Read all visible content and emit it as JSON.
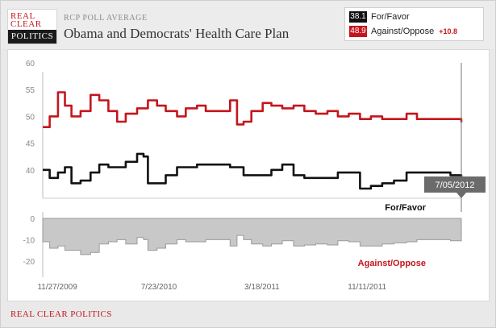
{
  "logo": {
    "line1": "REAL",
    "line2": "CLEAR",
    "line3": "POLITICS"
  },
  "header": {
    "kicker": "RCP POLL AVERAGE",
    "title": "Obama and Democrats' Health Care Plan"
  },
  "legend": {
    "favor": {
      "value": "38.1",
      "label": "For/Favor"
    },
    "against": {
      "value": "48.9",
      "label": "Against/Oppose",
      "spread": "+10.8"
    }
  },
  "colors": {
    "favor": "#111111",
    "against": "#c4161c",
    "spread_fill": "#c8c8c8",
    "brand_red": "#c4161c"
  },
  "footer": {
    "source": "REAL CLEAR POLITICS"
  },
  "chart_data": [
    {
      "type": "line",
      "title": "Obama and Democrats' Health Care Plan",
      "x_domain": [
        "2009-11-15",
        "2012-07-05"
      ],
      "ylim": [
        35,
        60
      ],
      "yticks": [
        40,
        45,
        50,
        55,
        60
      ],
      "grid": false,
      "tooltip": "7/05/2012",
      "series": [
        {
          "name": "Against/Oppose",
          "color": "#c4161c",
          "points": [
            [
              "2009-11-15",
              48
            ],
            [
              "2009-12-01",
              50
            ],
            [
              "2009-12-20",
              54.5
            ],
            [
              "2010-01-05",
              52
            ],
            [
              "2010-01-20",
              50
            ],
            [
              "2010-02-10",
              51
            ],
            [
              "2010-03-05",
              54
            ],
            [
              "2010-03-25",
              53
            ],
            [
              "2010-04-15",
              51
            ],
            [
              "2010-05-05",
              49
            ],
            [
              "2010-05-25",
              50.5
            ],
            [
              "2010-06-20",
              51.5
            ],
            [
              "2010-07-15",
              53
            ],
            [
              "2010-08-05",
              52
            ],
            [
              "2010-08-25",
              51
            ],
            [
              "2010-09-20",
              50
            ],
            [
              "2010-10-10",
              51.5
            ],
            [
              "2010-11-05",
              52
            ],
            [
              "2010-11-25",
              51
            ],
            [
              "2010-12-20",
              51
            ],
            [
              "2011-01-20",
              53
            ],
            [
              "2011-02-05",
              48.5
            ],
            [
              "2011-02-20",
              49
            ],
            [
              "2011-03-10",
              51
            ],
            [
              "2011-04-05",
              52.5
            ],
            [
              "2011-04-25",
              52
            ],
            [
              "2011-05-20",
              51.5
            ],
            [
              "2011-06-15",
              52
            ],
            [
              "2011-07-10",
              51
            ],
            [
              "2011-08-05",
              50.5
            ],
            [
              "2011-09-01",
              51
            ],
            [
              "2011-09-25",
              50
            ],
            [
              "2011-10-20",
              50.5
            ],
            [
              "2011-11-15",
              49.5
            ],
            [
              "2011-12-10",
              50
            ],
            [
              "2012-01-05",
              49.5
            ],
            [
              "2012-02-01",
              49.5
            ],
            [
              "2012-03-01",
              50.5
            ],
            [
              "2012-03-25",
              49.5
            ],
            [
              "2012-04-20",
              49.5
            ],
            [
              "2012-05-15",
              49.5
            ],
            [
              "2012-06-10",
              49.5
            ],
            [
              "2012-07-05",
              48.9
            ]
          ]
        },
        {
          "name": "For/Favor",
          "color": "#111111",
          "points": [
            [
              "2009-11-15",
              40
            ],
            [
              "2009-12-01",
              38.5
            ],
            [
              "2009-12-20",
              39.5
            ],
            [
              "2010-01-05",
              40.5
            ],
            [
              "2010-01-20",
              37.5
            ],
            [
              "2010-02-10",
              38
            ],
            [
              "2010-03-05",
              39.5
            ],
            [
              "2010-03-25",
              41
            ],
            [
              "2010-04-15",
              40.5
            ],
            [
              "2010-05-05",
              40.5
            ],
            [
              "2010-05-25",
              41.5
            ],
            [
              "2010-06-20",
              43
            ],
            [
              "2010-07-05",
              42.5
            ],
            [
              "2010-07-15",
              37.5
            ],
            [
              "2010-08-05",
              37.5
            ],
            [
              "2010-08-25",
              39
            ],
            [
              "2010-09-20",
              40.5
            ],
            [
              "2010-10-10",
              40.5
            ],
            [
              "2010-11-05",
              41
            ],
            [
              "2010-11-25",
              41
            ],
            [
              "2010-12-20",
              41
            ],
            [
              "2011-01-20",
              40.5
            ],
            [
              "2011-02-05",
              40.5
            ],
            [
              "2011-02-20",
              39
            ],
            [
              "2011-03-10",
              39
            ],
            [
              "2011-04-05",
              39
            ],
            [
              "2011-04-25",
              40
            ],
            [
              "2011-05-20",
              41
            ],
            [
              "2011-06-15",
              39
            ],
            [
              "2011-07-10",
              38.5
            ],
            [
              "2011-08-05",
              38.5
            ],
            [
              "2011-09-01",
              38.5
            ],
            [
              "2011-09-25",
              39.5
            ],
            [
              "2011-10-20",
              39.5
            ],
            [
              "2011-11-15",
              36.5
            ],
            [
              "2011-12-10",
              37
            ],
            [
              "2012-01-05",
              37.5
            ],
            [
              "2012-02-01",
              38
            ],
            [
              "2012-03-01",
              39.5
            ],
            [
              "2012-03-25",
              39.5
            ],
            [
              "2012-04-20",
              39.5
            ],
            [
              "2012-05-15",
              39.5
            ],
            [
              "2012-06-10",
              39
            ],
            [
              "2012-07-05",
              38.1
            ]
          ]
        }
      ]
    },
    {
      "type": "area",
      "x_domain": [
        "2009-11-15",
        "2012-07-05"
      ],
      "ylim": [
        -25,
        0
      ],
      "yticks": [
        0,
        -10,
        -20
      ],
      "xticks": [
        "11/27/2009",
        "7/23/2010",
        "3/18/2011",
        "11/11/2011"
      ],
      "annotations": [
        "For/Favor",
        "Against/Oppose"
      ],
      "series": [
        {
          "name": "spread",
          "color": "#c8c8c8",
          "points": [
            [
              "2009-11-15",
              -11
            ],
            [
              "2009-12-01",
              -14
            ],
            [
              "2009-12-20",
              -13
            ],
            [
              "2010-01-05",
              -15
            ],
            [
              "2010-01-20",
              -15
            ],
            [
              "2010-02-10",
              -17
            ],
            [
              "2010-03-05",
              -16
            ],
            [
              "2010-03-25",
              -12
            ],
            [
              "2010-04-15",
              -11
            ],
            [
              "2010-05-05",
              -10
            ],
            [
              "2010-05-25",
              -12
            ],
            [
              "2010-06-20",
              -9
            ],
            [
              "2010-07-05",
              -10
            ],
            [
              "2010-07-15",
              -15
            ],
            [
              "2010-08-05",
              -14
            ],
            [
              "2010-08-25",
              -12
            ],
            [
              "2010-09-20",
              -10
            ],
            [
              "2010-10-10",
              -11
            ],
            [
              "2010-11-05",
              -11
            ],
            [
              "2010-11-25",
              -10
            ],
            [
              "2010-12-20",
              -10
            ],
            [
              "2011-01-20",
              -13
            ],
            [
              "2011-02-05",
              -8
            ],
            [
              "2011-02-20",
              -10
            ],
            [
              "2011-03-10",
              -12
            ],
            [
              "2011-04-05",
              -13
            ],
            [
              "2011-04-25",
              -12
            ],
            [
              "2011-05-20",
              -10.5
            ],
            [
              "2011-06-15",
              -13
            ],
            [
              "2011-07-10",
              -12.5
            ],
            [
              "2011-08-05",
              -12
            ],
            [
              "2011-09-01",
              -12.5
            ],
            [
              "2011-09-25",
              -10.5
            ],
            [
              "2011-10-20",
              -11
            ],
            [
              "2011-11-15",
              -13
            ],
            [
              "2011-12-10",
              -13
            ],
            [
              "2012-01-05",
              -12
            ],
            [
              "2012-02-01",
              -11.5
            ],
            [
              "2012-03-01",
              -11
            ],
            [
              "2012-03-25",
              -10
            ],
            [
              "2012-04-20",
              -10
            ],
            [
              "2012-05-15",
              -10
            ],
            [
              "2012-06-10",
              -10.5
            ],
            [
              "2012-07-05",
              -10.8
            ]
          ]
        }
      ]
    }
  ]
}
